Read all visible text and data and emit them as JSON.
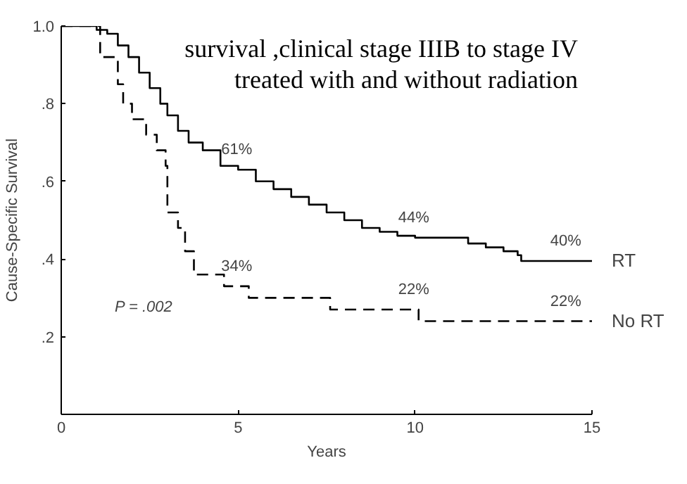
{
  "chart_data": {
    "type": "step",
    "title": "survival ,clinical stage IIIB to stage IV treated with and without radiation",
    "xlabel": "Years",
    "ylabel": "Cause-Specific Survival",
    "xlim": [
      0,
      15
    ],
    "ylim": [
      0,
      1
    ],
    "xticks": [
      0,
      5,
      10,
      15
    ],
    "yticks": [
      {
        "value": 0.2,
        "label": ".2"
      },
      {
        "value": 0.4,
        "label": ".4"
      },
      {
        "value": 0.6,
        "label": ".6"
      },
      {
        "value": 0.8,
        "label": ".8"
      },
      {
        "value": 1.0,
        "label": "1.0"
      }
    ],
    "grid": false,
    "legend": false,
    "series": [
      {
        "name": "RT",
        "color": "#000000",
        "line_style": "solid",
        "x": [
          0,
          0.9,
          1.0,
          1.3,
          1.6,
          1.9,
          2.2,
          2.5,
          2.8,
          3.0,
          3.3,
          3.6,
          4.0,
          4.5,
          5.0,
          5.5,
          6.0,
          6.5,
          7.0,
          7.5,
          8.0,
          8.5,
          9.0,
          9.5,
          10.0,
          11.0,
          11.5,
          12.0,
          12.5,
          12.9,
          13.0,
          15.0
        ],
        "values": [
          1.0,
          1.0,
          0.99,
          0.98,
          0.95,
          0.92,
          0.88,
          0.84,
          0.8,
          0.77,
          0.73,
          0.7,
          0.68,
          0.64,
          0.63,
          0.6,
          0.58,
          0.56,
          0.54,
          0.52,
          0.5,
          0.48,
          0.47,
          0.46,
          0.455,
          0.455,
          0.44,
          0.43,
          0.42,
          0.41,
          0.395,
          0.395
        ]
      },
      {
        "name": "No RT",
        "color": "#000000",
        "line_style": "dashed",
        "x": [
          0,
          1.1,
          1.6,
          1.75,
          2.0,
          2.4,
          2.7,
          2.95,
          3.0,
          3.3,
          3.5,
          3.75,
          4.6,
          5.3,
          7.6,
          10.1,
          15.0
        ],
        "values": [
          1.0,
          0.92,
          0.85,
          0.8,
          0.76,
          0.72,
          0.68,
          0.64,
          0.52,
          0.48,
          0.42,
          0.36,
          0.33,
          0.3,
          0.27,
          0.24,
          0.24
        ]
      }
    ],
    "annotations": [
      {
        "text": "61%",
        "x": 5,
        "y": 0.63
      },
      {
        "text": "44%",
        "x": 10,
        "y": 0.455
      },
      {
        "text": "40%",
        "x": 14.3,
        "y": 0.395
      },
      {
        "text": "34%",
        "x": 5,
        "y": 0.33
      },
      {
        "text": "22%",
        "x": 10,
        "y": 0.27
      },
      {
        "text": "22%",
        "x": 14.3,
        "y": 0.24
      },
      "P = .002"
    ]
  }
}
